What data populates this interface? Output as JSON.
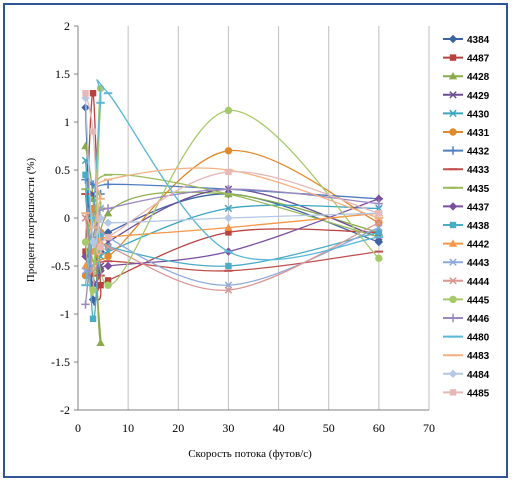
{
  "chart_data": {
    "type": "line",
    "title": "",
    "xlabel": "Скорость потока (футов/с)",
    "ylabel": "Процент погрешности (%)",
    "xlim": [
      0,
      70
    ],
    "ylim": [
      -2,
      2
    ],
    "xticks": [
      "0",
      "10",
      "20",
      "30",
      "40",
      "50",
      "60",
      "70"
    ],
    "yticks": [
      "2",
      "1.5",
      "1",
      "0.5",
      "0",
      "-0.5",
      "-1",
      "-1.5",
      "-2"
    ],
    "grid": "vertical",
    "legend_position": "right",
    "x": [
      1.5,
      3,
      4.5,
      6,
      30,
      60
    ],
    "series": [
      {
        "name": "4384",
        "color": "#3c64a5",
        "marker": "diamond",
        "values": [
          1.15,
          -0.85,
          -0.35,
          -0.15,
          0.25,
          -0.25
        ]
      },
      {
        "name": "4487",
        "color": "#b8413d",
        "marker": "square",
        "values": [
          -0.35,
          1.3,
          -0.7,
          -0.65,
          -0.15,
          -0.15
        ]
      },
      {
        "name": "4428",
        "color": "#8aab4a",
        "marker": "triangle",
        "values": [
          0.75,
          0.2,
          -1.3,
          0.05,
          0.25,
          -0.15
        ]
      },
      {
        "name": "4429",
        "color": "#6b4e92",
        "marker": "x",
        "values": [
          0.0,
          0.25,
          -0.5,
          -0.25,
          0.3,
          -0.2
        ]
      },
      {
        "name": "4430",
        "color": "#3aa6c1",
        "marker": "x",
        "values": [
          0.6,
          -0.25,
          -0.4,
          -0.35,
          0.1,
          0.1
        ]
      },
      {
        "name": "4431",
        "color": "#e08a2c",
        "marker": "circle",
        "values": [
          -0.6,
          0.1,
          -0.15,
          -0.4,
          0.7,
          -0.05
        ]
      },
      {
        "name": "4432",
        "color": "#4f7ec0",
        "marker": "plus",
        "values": [
          0.4,
          0.35,
          0.25,
          0.35,
          0.3,
          0.2
        ]
      },
      {
        "name": "4433",
        "color": "#c0504d",
        "marker": "dash",
        "values": [
          0.25,
          -0.6,
          -0.6,
          -0.45,
          -0.55,
          -0.35
        ]
      },
      {
        "name": "4435",
        "color": "#9bbb59",
        "marker": "dash",
        "values": [
          0.3,
          -0.45,
          0.1,
          0.45,
          0.25,
          -0.2
        ]
      },
      {
        "name": "4437",
        "color": "#7a4fa0",
        "marker": "diamond",
        "values": [
          -0.4,
          -0.7,
          -0.55,
          -0.5,
          -0.35,
          0.2
        ]
      },
      {
        "name": "4438",
        "color": "#4bacc6",
        "marker": "square",
        "values": [
          0.45,
          -1.05,
          -0.2,
          -0.3,
          -0.5,
          -0.15
        ]
      },
      {
        "name": "4442",
        "color": "#f79646",
        "marker": "triangle",
        "values": [
          -0.5,
          -0.35,
          -0.25,
          -0.2,
          -0.1,
          0.05
        ]
      },
      {
        "name": "4443",
        "color": "#8ea9db",
        "marker": "x",
        "values": [
          -0.55,
          -0.5,
          0.1,
          -0.2,
          -0.7,
          -0.1
        ]
      },
      {
        "name": "4444",
        "color": "#d99694",
        "marker": "x",
        "values": [
          0.0,
          -0.55,
          -0.35,
          -0.3,
          -0.75,
          -0.05
        ]
      },
      {
        "name": "4445",
        "color": "#a6c96a",
        "marker": "circle",
        "values": [
          -0.25,
          -0.75,
          1.35,
          -0.7,
          1.12,
          -0.42
        ]
      },
      {
        "name": "4446",
        "color": "#9b88c0",
        "marker": "plus",
        "values": [
          -0.9,
          -0.2,
          0.0,
          0.1,
          0.3,
          0.15
        ]
      },
      {
        "name": "4480",
        "color": "#5bb8d6",
        "marker": "dash",
        "values": [
          -0.7,
          0.0,
          1.2,
          1.3,
          -0.35,
          -0.2
        ]
      },
      {
        "name": "4483",
        "color": "#f4b183",
        "marker": "dash",
        "values": [
          0.05,
          -0.1,
          0.2,
          0.4,
          0.5,
          0.0
        ]
      },
      {
        "name": "4484",
        "color": "#b4c7e7",
        "marker": "diamond",
        "values": [
          1.25,
          -0.25,
          0.0,
          -0.05,
          0.0,
          0.05
        ]
      },
      {
        "name": "4485",
        "color": "#e6b9b8",
        "marker": "square",
        "values": [
          1.3,
          0.9,
          -0.3,
          -0.2,
          0.48,
          0.05
        ]
      }
    ]
  }
}
